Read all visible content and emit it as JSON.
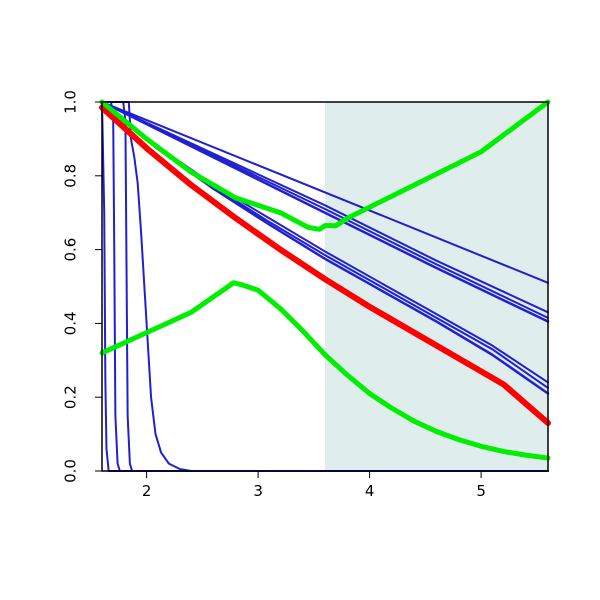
{
  "chart_data": {
    "type": "line",
    "title": "",
    "xlabel": "",
    "ylabel": "",
    "xlim": [
      1.6,
      5.6
    ],
    "ylim": [
      0,
      1
    ],
    "x_ticks": [
      2,
      3,
      4,
      5
    ],
    "x_tick_labels": [
      "2",
      "3",
      "4",
      "5"
    ],
    "y_ticks": [
      0.0,
      0.2,
      0.4,
      0.6,
      0.8,
      1.0
    ],
    "y_tick_labels": [
      "0.0",
      "0.2",
      "0.4",
      "0.6",
      "0.8",
      "1.0"
    ],
    "grid": false,
    "legend": false,
    "shaded_region": {
      "x_from": 3.6,
      "x_to": 5.6,
      "color": "#e0eded"
    },
    "series": [
      {
        "color": "#2020d0",
        "width": 2,
        "points": [
          [
            1.6,
            1.0
          ],
          [
            1.62,
            0.7
          ],
          [
            1.63,
            0.25
          ],
          [
            1.64,
            0.06
          ],
          [
            1.66,
            0.0
          ],
          [
            5.6,
            0.0
          ]
        ]
      },
      {
        "color": "#2020d0",
        "width": 2,
        "points": [
          [
            1.6,
            1.0
          ],
          [
            1.68,
            1.0
          ],
          [
            1.7,
            0.97
          ],
          [
            1.71,
            0.6
          ],
          [
            1.72,
            0.15
          ],
          [
            1.74,
            0.02
          ],
          [
            1.76,
            0.0
          ],
          [
            5.6,
            0.0
          ]
        ]
      },
      {
        "color": "#2020d0",
        "width": 2,
        "points": [
          [
            1.6,
            1.0
          ],
          [
            1.79,
            1.0
          ],
          [
            1.81,
            0.95
          ],
          [
            1.82,
            0.55
          ],
          [
            1.83,
            0.15
          ],
          [
            1.85,
            0.02
          ],
          [
            1.87,
            0.0
          ],
          [
            5.6,
            0.0
          ]
        ]
      },
      {
        "color": "#2020d0",
        "width": 2,
        "points": [
          [
            1.6,
            1.0
          ],
          [
            1.84,
            1.0
          ],
          [
            1.86,
            0.9
          ],
          [
            1.89,
            0.85
          ],
          [
            1.92,
            0.78
          ],
          [
            1.95,
            0.65
          ],
          [
            1.98,
            0.5
          ],
          [
            2.01,
            0.35
          ],
          [
            2.04,
            0.2
          ],
          [
            2.08,
            0.1
          ],
          [
            2.13,
            0.05
          ],
          [
            2.2,
            0.02
          ],
          [
            2.3,
            0.005
          ],
          [
            2.4,
            0.0
          ],
          [
            5.6,
            0.0
          ]
        ]
      },
      {
        "color": "#2020d0",
        "width": 2,
        "points": [
          [
            1.6,
            1.0
          ],
          [
            5.6,
            0.51
          ]
        ]
      },
      {
        "color": "#2020d0",
        "width": 2,
        "points": [
          [
            1.6,
            1.0
          ],
          [
            2.6,
            0.86
          ],
          [
            3.6,
            0.72
          ],
          [
            4.6,
            0.57
          ],
          [
            5.6,
            0.43
          ]
        ]
      },
      {
        "color": "#2020d0",
        "width": 2,
        "points": [
          [
            1.6,
            1.0
          ],
          [
            2.6,
            0.855
          ],
          [
            3.6,
            0.71
          ],
          [
            4.6,
            0.56
          ],
          [
            5.6,
            0.415
          ]
        ]
      },
      {
        "color": "#2020d0",
        "width": 2.5,
        "points": [
          [
            1.6,
            1.0
          ],
          [
            2.6,
            0.85
          ],
          [
            3.6,
            0.7
          ],
          [
            4.6,
            0.55
          ],
          [
            5.6,
            0.405
          ]
        ]
      },
      {
        "color": "#2020d0",
        "width": 2,
        "points": [
          [
            1.6,
            1.0
          ],
          [
            2.1,
            0.88
          ],
          [
            2.6,
            0.775
          ],
          [
            3.1,
            0.685
          ],
          [
            3.6,
            0.595
          ],
          [
            4.1,
            0.51
          ],
          [
            4.6,
            0.425
          ],
          [
            5.1,
            0.34
          ],
          [
            5.6,
            0.24
          ]
        ]
      },
      {
        "color": "#2020d0",
        "width": 2,
        "points": [
          [
            1.6,
            1.0
          ],
          [
            2.1,
            0.878
          ],
          [
            2.6,
            0.77
          ],
          [
            3.1,
            0.675
          ],
          [
            3.6,
            0.585
          ],
          [
            4.1,
            0.5
          ],
          [
            4.6,
            0.415
          ],
          [
            5.1,
            0.33
          ],
          [
            5.6,
            0.225
          ]
        ]
      },
      {
        "color": "#2020d0",
        "width": 2.5,
        "points": [
          [
            1.6,
            1.0
          ],
          [
            2.1,
            0.873
          ],
          [
            2.6,
            0.765
          ],
          [
            3.1,
            0.668
          ],
          [
            3.6,
            0.575
          ],
          [
            4.1,
            0.49
          ],
          [
            4.6,
            0.405
          ],
          [
            5.1,
            0.315
          ],
          [
            5.6,
            0.21
          ]
        ]
      },
      {
        "color": "#ff0000",
        "width": 6,
        "points": [
          [
            1.6,
            0.985
          ],
          [
            2.0,
            0.875
          ],
          [
            2.4,
            0.775
          ],
          [
            2.8,
            0.685
          ],
          [
            3.2,
            0.6
          ],
          [
            3.6,
            0.52
          ],
          [
            4.0,
            0.445
          ],
          [
            4.4,
            0.375
          ],
          [
            4.8,
            0.305
          ],
          [
            5.2,
            0.235
          ],
          [
            5.6,
            0.13
          ]
        ]
      },
      {
        "color": "#00ee00",
        "width": 5,
        "points": [
          [
            1.6,
            1.0
          ],
          [
            2.0,
            0.9
          ],
          [
            2.4,
            0.81
          ],
          [
            2.8,
            0.74
          ],
          [
            3.2,
            0.7
          ],
          [
            3.45,
            0.66
          ],
          [
            3.55,
            0.655
          ],
          [
            3.6,
            0.665
          ],
          [
            3.7,
            0.665
          ],
          [
            3.8,
            0.685
          ],
          [
            4.2,
            0.745
          ],
          [
            4.6,
            0.805
          ],
          [
            5.0,
            0.865
          ],
          [
            5.6,
            1.0
          ]
        ]
      },
      {
        "color": "#00ee00",
        "width": 5,
        "points": [
          [
            1.6,
            0.32
          ],
          [
            2.0,
            0.375
          ],
          [
            2.4,
            0.43
          ],
          [
            2.78,
            0.51
          ],
          [
            2.85,
            0.505
          ],
          [
            2.95,
            0.495
          ],
          [
            3.0,
            0.49
          ],
          [
            3.2,
            0.44
          ],
          [
            3.4,
            0.38
          ],
          [
            3.6,
            0.315
          ],
          [
            3.8,
            0.26
          ],
          [
            4.0,
            0.21
          ],
          [
            4.2,
            0.17
          ],
          [
            4.4,
            0.135
          ],
          [
            4.6,
            0.107
          ],
          [
            4.8,
            0.085
          ],
          [
            5.0,
            0.067
          ],
          [
            5.2,
            0.053
          ],
          [
            5.4,
            0.043
          ],
          [
            5.6,
            0.035
          ]
        ]
      }
    ]
  }
}
